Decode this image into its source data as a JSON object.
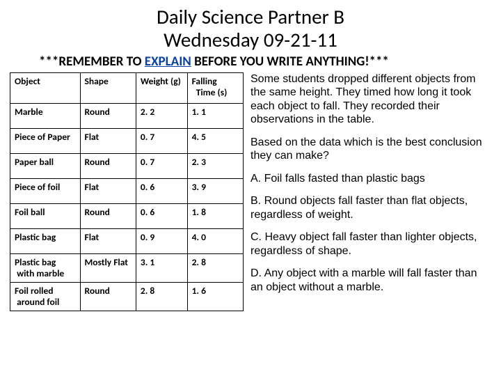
{
  "title_line1": "Daily Science Partner B",
  "title_line2": "Wednesday 09-21-11",
  "reminder_pre": "***REMEMBER TO ",
  "reminder_explain": "EXPLAIN",
  "reminder_post": " BEFORE YOU WRITE ANYTHING!***",
  "table": {
    "headers": {
      "object": "Object",
      "shape": "Shape",
      "weight": "Weight (g)",
      "time_l1": "Falling",
      "time_l2": "Time (s)"
    },
    "rows": [
      {
        "object": "Marble",
        "shape": "Round",
        "weight": "2. 2",
        "time": "1. 1"
      },
      {
        "object": "Piece of Paper",
        "shape": "Flat",
        "weight": "0. 7",
        "time": "4. 5"
      },
      {
        "object": "Paper ball",
        "shape": "Round",
        "weight": "0. 7",
        "time": "2. 3"
      },
      {
        "object": "Piece of foil",
        "shape": "Flat",
        "weight": "0. 6",
        "time": "3. 9"
      },
      {
        "object": "Foil ball",
        "shape": "Round",
        "weight": "0. 6",
        "time": "1. 8"
      },
      {
        "object": "Plastic bag",
        "shape": "Flat",
        "weight": "0. 9",
        "time": "4. 0"
      },
      {
        "object_l1": "Plastic bag",
        "object_l2": "with marble",
        "shape": "Mostly Flat",
        "weight": "3. 1",
        "time": "2. 8"
      },
      {
        "object_l1": "Foil rolled",
        "object_l2": "around foil",
        "shape": "Round",
        "weight": "2. 8",
        "time": "1. 6"
      }
    ]
  },
  "intro": "Some students dropped different objects from the same height. They timed how long it took each object to fall. They recorded their observations in the table.",
  "question": "Based on the data which is the best conclusion they can make?",
  "choices": {
    "a": "A. Foil falls fasted than plastic bags",
    "b": "B. Round objects fall faster than flat objects, regardless of weight.",
    "c": "C. Heavy object fall faster than lighter objects, regardless of shape.",
    "d": "D. Any object with a marble will fall faster than an object without a marble."
  }
}
